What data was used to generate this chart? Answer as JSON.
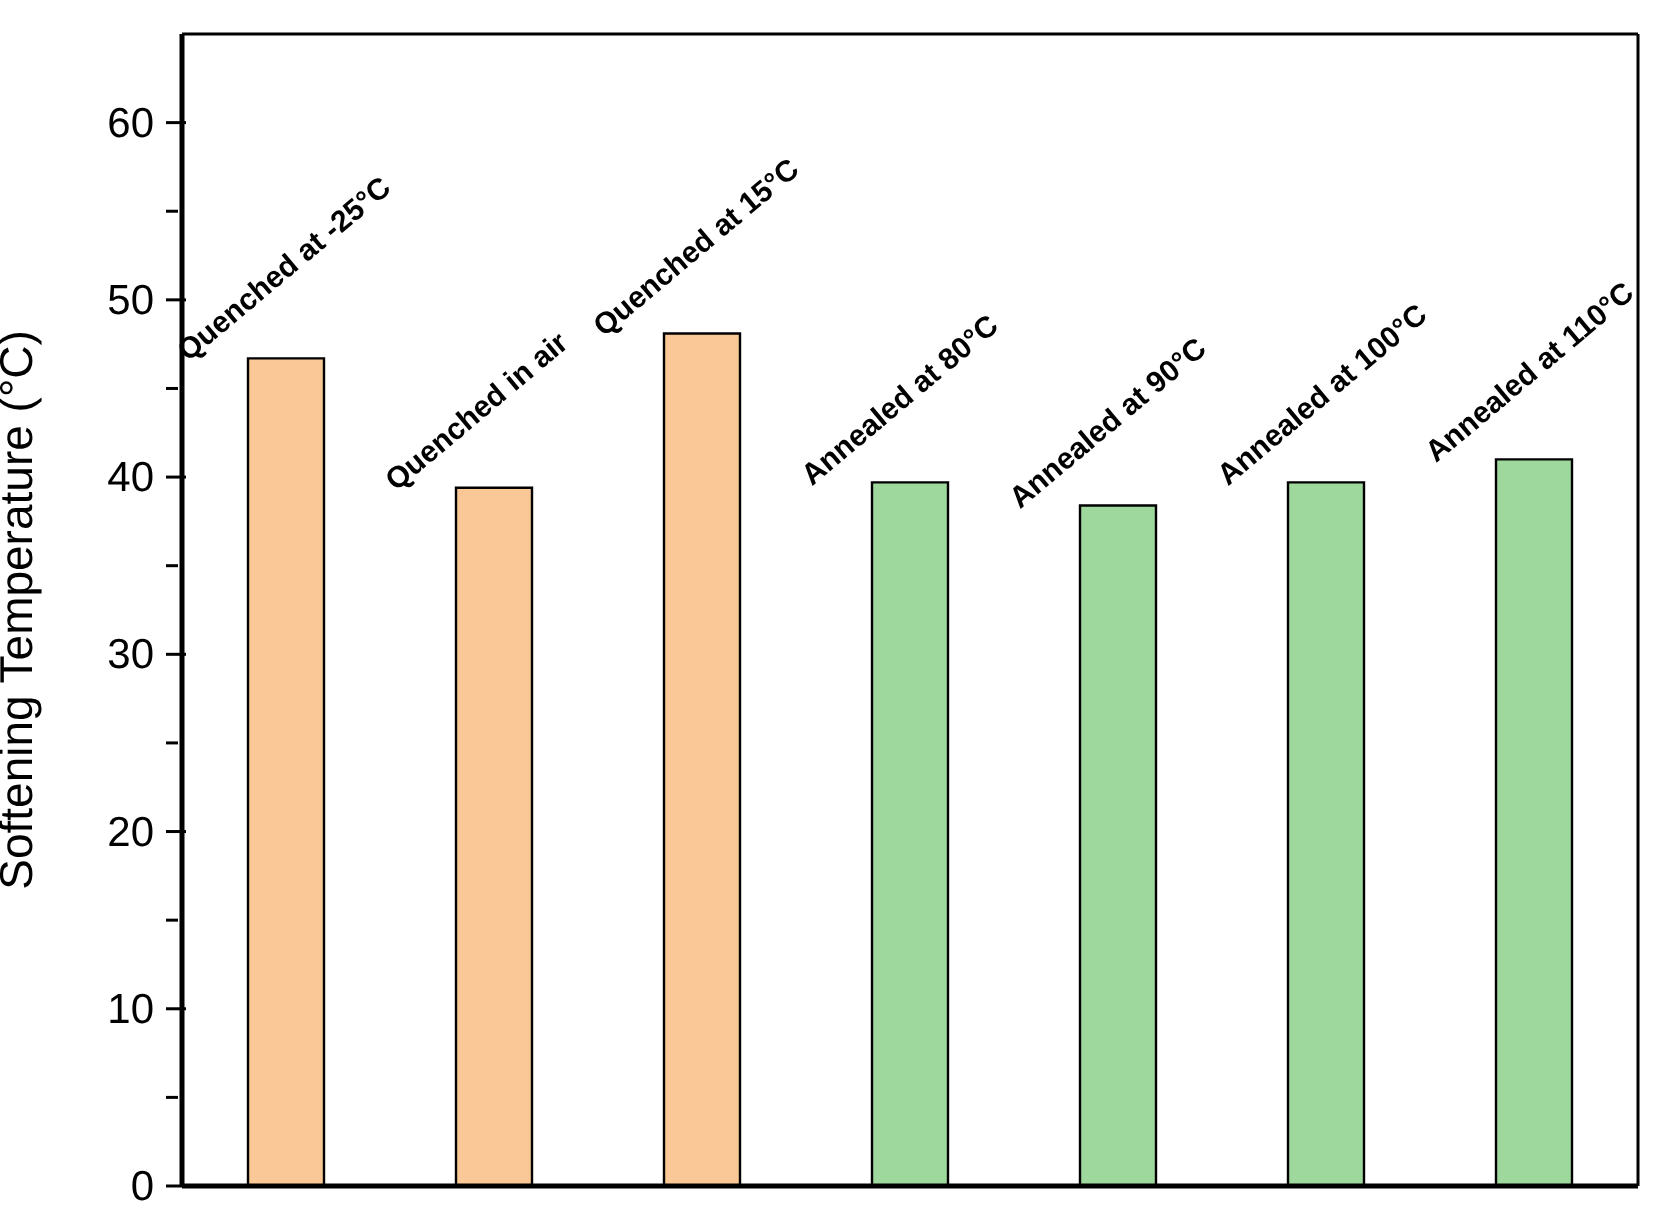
{
  "chart_data": {
    "type": "bar",
    "ylabel": "Softening Temperature (°C)",
    "categories": [
      "Quenched at -25°C",
      "Quenched in air",
      "Quenched at 15°C",
      "Annealed at 80°C",
      "Annealed at 90°C",
      "Annealed at 100°C",
      "Annealed at 110°C"
    ],
    "values": [
      46.7,
      39.4,
      48.1,
      39.7,
      38.4,
      39.7,
      41.0
    ],
    "colors": [
      "#fac896",
      "#fac896",
      "#fac896",
      "#9ed89c",
      "#9ed89c",
      "#9ed89c",
      "#9ed89c"
    ],
    "ylim": [
      0,
      65
    ],
    "yticks": [
      0,
      {
        "value": 5,
        "label": null
      },
      10,
      {
        "value": 15,
        "label": null
      },
      20,
      {
        "value": 25,
        "label": null
      },
      30,
      {
        "value": 35,
        "label": null
      },
      40,
      {
        "value": 45,
        "label": null
      },
      50,
      {
        "value": 55,
        "label": null
      },
      60
    ],
    "tick_labels": "y",
    "grid": false
  }
}
